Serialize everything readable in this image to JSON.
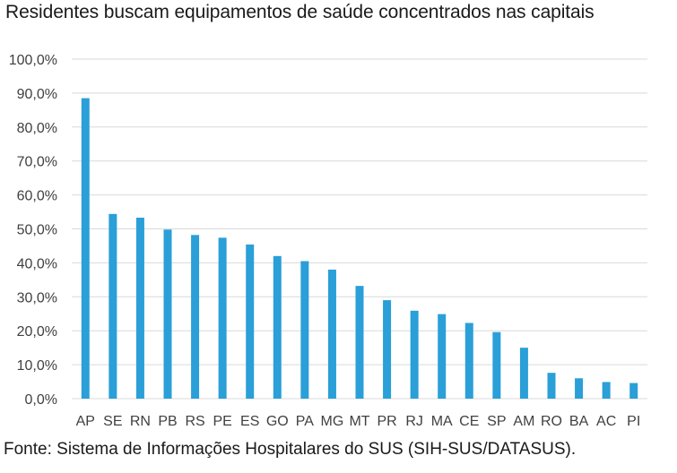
{
  "page": {
    "title": "Residentes buscam equipamentos de saúde concentrados nas capitais",
    "source": "Fonte: Sistema de Informações Hospitalares do SUS (SIH-SUS/DATASUS)."
  },
  "chart_data": {
    "type": "bar",
    "title": "Residentes buscam equipamentos de saúde concentrados nas capitais",
    "categories": [
      "AP",
      "SE",
      "RN",
      "PB",
      "RS",
      "PE",
      "ES",
      "GO",
      "PA",
      "MG",
      "MT",
      "PR",
      "RJ",
      "MA",
      "CE",
      "SP",
      "AM",
      "RO",
      "BA",
      "AC",
      "PI"
    ],
    "values": [
      88.5,
      54.4,
      53.3,
      49.8,
      48.2,
      47.4,
      45.4,
      42.0,
      40.5,
      38.0,
      33.2,
      29.0,
      25.9,
      24.9,
      22.3,
      19.6,
      15.0,
      7.6,
      6.0,
      4.9,
      4.6
    ],
    "ylim": [
      0,
      100
    ],
    "yticks": [
      "0,0%",
      "10,0%",
      "20,0%",
      "30,0%",
      "40,0%",
      "50,0%",
      "60,0%",
      "70,0%",
      "80,0%",
      "90,0%",
      "100,0%"
    ],
    "grid": true,
    "legend": "none",
    "bar_color": "#2a9fd8",
    "grid_color": "#d9d9d9"
  }
}
